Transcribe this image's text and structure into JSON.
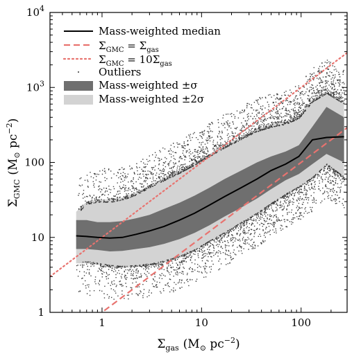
{
  "chart_data": {
    "type": "line",
    "xscale": "log",
    "yscale": "log",
    "xlim": [
      0.3,
      290
    ],
    "ylim": [
      1,
      10000
    ],
    "xlabel_main": "Σ",
    "xlabel_sub": "gas",
    "xlabel_units": "(M",
    "xlabel_units_sub": "⊙",
    "xlabel_units_tail": " pc",
    "xlabel_units_sup": "−2",
    "xlabel_units_close": ")",
    "ylabel_main": "Σ",
    "ylabel_sub": "GMC",
    "ylabel_units": "(M",
    "ylabel_units_sub": "⊙",
    "ylabel_units_tail": " pc",
    "ylabel_units_sup": "−2",
    "ylabel_units_close": ")",
    "x_ticks": [
      {
        "value": 1,
        "label": "1"
      },
      {
        "value": 10,
        "label": "10"
      },
      {
        "value": 100,
        "label": "100"
      }
    ],
    "y_ticks": [
      {
        "value": 1,
        "label": "1"
      },
      {
        "value": 10,
        "label": "10"
      },
      {
        "value": 100,
        "label": "100"
      },
      {
        "value": 1000,
        "label": "10",
        "sup": "3"
      },
      {
        "value": 10000,
        "label": "10",
        "sup": "4"
      }
    ],
    "legend": {
      "placement": "upper-left",
      "entries": [
        {
          "key": "median",
          "text": "Mass-weighted median"
        },
        {
          "key": "equal",
          "main": "Σ",
          "sub1": "GMC",
          "eq": " = Σ",
          "sub2": "gas"
        },
        {
          "key": "tenx",
          "main": "Σ",
          "sub1": "GMC",
          "eq": " = 10Σ",
          "sub2": "gas"
        },
        {
          "key": "outliers",
          "text": "Outliers"
        },
        {
          "key": "sigma1",
          "text": "Mass-weighted ±σ"
        },
        {
          "key": "sigma2",
          "text": "Mass-weighted ±2σ"
        }
      ]
    },
    "series": [
      {
        "name": "Mass-weighted median",
        "x": [
          0.55,
          0.7,
          0.9,
          1.2,
          1.6,
          2.2,
          3.0,
          4.2,
          6.0,
          8.5,
          12,
          17,
          25,
          36,
          50,
          70,
          95,
          130,
          180,
          270
        ],
        "y": [
          10.5,
          10.3,
          10.0,
          9.8,
          10.0,
          11.0,
          12.2,
          14.0,
          17.0,
          21.0,
          27.0,
          35.0,
          46.0,
          60.0,
          78.0,
          95.0,
          120.0,
          200.0,
          215.0,
          220.0
        ]
      },
      {
        "name": "Mass-weighted ±σ",
        "x": [
          0.55,
          0.7,
          0.9,
          1.2,
          1.6,
          2.2,
          3.0,
          4.2,
          6.0,
          8.5,
          12,
          17,
          25,
          36,
          50,
          70,
          95,
          130,
          180,
          270
        ],
        "lower": [
          7.0,
          7.0,
          6.8,
          6.5,
          6.6,
          7.0,
          7.4,
          8.2,
          9.5,
          11.5,
          14.5,
          19.0,
          25.0,
          33.0,
          44.0,
          58.0,
          70.0,
          95.0,
          130.0,
          100.0
        ],
        "upper": [
          17.0,
          17.0,
          16.0,
          16.0,
          16.5,
          18.0,
          20.0,
          24.0,
          29.0,
          36.0,
          46.0,
          60.0,
          78.0,
          100.0,
          120.0,
          140.0,
          170.0,
          300.0,
          550.0,
          400.0
        ]
      },
      {
        "name": "Mass-weighted ±2σ",
        "x": [
          0.55,
          0.7,
          0.9,
          1.2,
          1.6,
          2.2,
          3.0,
          4.2,
          6.0,
          8.5,
          12,
          17,
          25,
          36,
          50,
          70,
          95,
          130,
          180,
          270
        ],
        "lower": [
          4.5,
          4.5,
          4.3,
          4.0,
          3.9,
          4.0,
          4.2,
          4.6,
          5.3,
          6.5,
          8.5,
          11.0,
          15.0,
          20.0,
          27.0,
          36.0,
          45.0,
          60.0,
          90.0,
          60.0
        ],
        "upper": [
          22.0,
          30.0,
          32.0,
          32.0,
          34.0,
          40.0,
          50.0,
          62.0,
          78.0,
          100.0,
          130.0,
          170.0,
          220.0,
          280.0,
          320.0,
          350.0,
          420.0,
          700.0,
          900.0,
          650.0
        ]
      },
      {
        "name": "Σ_GMC = Σ_gas",
        "x": [
          0.3,
          290
        ],
        "y": [
          0.3,
          290
        ]
      },
      {
        "name": "Σ_GMC = 10Σ_gas",
        "x": [
          0.3,
          290
        ],
        "y": [
          3,
          2900
        ]
      }
    ],
    "colors": {
      "median": "#000000",
      "sigma1": "#6f6f6f",
      "sigma2": "#d3d3d3",
      "equal_line": "#e8736f",
      "tenx_line": "#e8736f",
      "outliers": "#000000"
    }
  }
}
